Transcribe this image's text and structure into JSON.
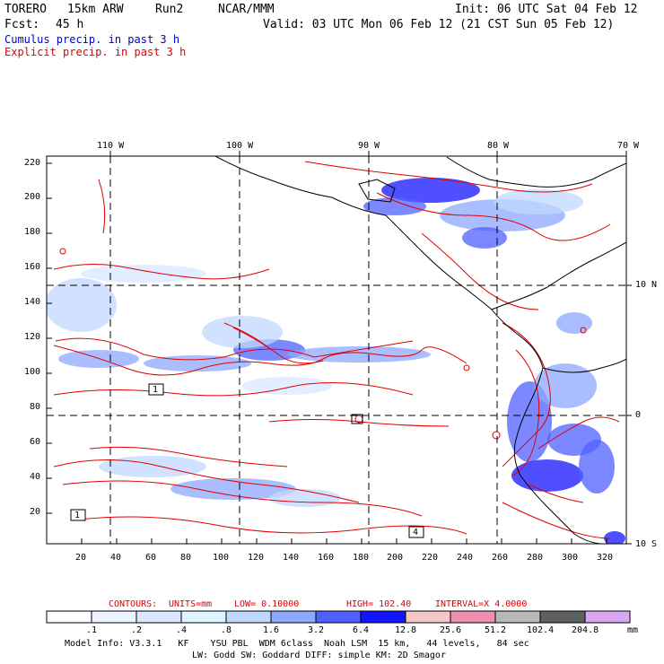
{
  "header": {
    "model": "TORERO",
    "resolution": "15km ARW",
    "run": "Run2",
    "org": "NCAR/MMM",
    "init": "Init: 06 UTC Sat 04 Feb 12",
    "fcst_label": "Fcst:",
    "fcst_hours": "45 h",
    "valid": "Valid: 03 UTC Mon 06 Feb 12 (21 CST Sun 05 Feb 12)"
  },
  "fields": {
    "cumulus": "Cumulus precip. in past 3 h",
    "explicit": "Explicit precip. in past 3 h"
  },
  "colors": {
    "cumulus_text": "#0000c8",
    "explicit_text": "#e00000",
    "contour": "#e00000",
    "coast": "#000000"
  },
  "axes": {
    "top": [
      "110 W",
      "100 W",
      "90 W",
      "80 W",
      "70 W"
    ],
    "right": [
      "10 N",
      "0",
      "10 S"
    ],
    "left": [
      "220",
      "200",
      "180",
      "160",
      "140",
      "120",
      "100",
      "80",
      "60",
      "40",
      "20"
    ],
    "bottom": [
      "20",
      "40",
      "60",
      "80",
      "100",
      "120",
      "140",
      "160",
      "180",
      "200",
      "220",
      "240",
      "260",
      "280",
      "300",
      "320"
    ]
  },
  "boxes": [
    "1",
    "1",
    "4"
  ],
  "contours_info": {
    "label": "CONTOURS:",
    "units": "UNITS=mm",
    "low": "LOW= 0.10000",
    "high": "HIGH= 102.40",
    "interval": "INTERVAL=X 4.0000"
  },
  "legend": {
    "unit": "mm",
    "labels": [
      ".1",
      ".2",
      ".4",
      ".8",
      "1.6",
      "3.2",
      "6.4",
      "12.8",
      "25.6",
      "51.2",
      "102.4",
      "204.8"
    ],
    "colors": [
      "#ffffff",
      "#eef4ff",
      "#d8e8ff",
      "#e0f4ff",
      "#c0d8ff",
      "#8ea8ff",
      "#5060ff",
      "#1414ff",
      "#f5c8c8",
      "#f090b0",
      "#b8b8b8",
      "#606060",
      "#d8a8f0"
    ]
  },
  "footer": {
    "line1": "Model Info: V3.3.1   KF    YSU PBL  WDM 6class  Noah LSM  15 km,   44 levels,   84 sec",
    "line2": "LW: Godd SW: Goddard DIFF: simple KM: 2D Smagor"
  }
}
